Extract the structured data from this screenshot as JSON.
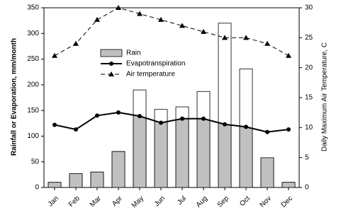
{
  "chart_data": {
    "type": "bar",
    "categories": [
      "Jan",
      "Feb",
      "Mar",
      "Apr",
      "May",
      "Jun",
      "Jul",
      "Aug",
      "Sep",
      "Oct",
      "Nov",
      "Dec"
    ],
    "y_label": "Rainfall or Evaporation, mm/month",
    "y2_label": "Daily Maximum Air Temperature, C",
    "ylim": [
      0,
      350
    ],
    "yticks": [
      0,
      50,
      100,
      150,
      200,
      250,
      300,
      350
    ],
    "y2lim": [
      0,
      30
    ],
    "y2ticks": [
      0,
      5,
      10,
      15,
      20,
      25,
      30
    ],
    "legend": "upper left",
    "series": [
      {
        "name": "Rain",
        "type": "bar",
        "color": "#c0c0c0",
        "values": [
          10,
          27,
          30,
          70,
          190,
          152,
          157,
          187,
          320,
          231,
          58,
          10
        ]
      },
      {
        "name": "Evapotranspiration",
        "type": "line",
        "marker": "circle",
        "color": "#000000",
        "values": [
          122,
          113,
          140,
          146,
          139,
          126,
          134,
          134,
          123,
          118,
          108,
          113
        ]
      },
      {
        "name": "Air temperature",
        "type": "line",
        "marker": "triangle",
        "dashed": true,
        "axis": "y2",
        "color": "#000000",
        "values": [
          22,
          24,
          28,
          30,
          29,
          28,
          27,
          26,
          25,
          25,
          24,
          22
        ]
      }
    ]
  }
}
